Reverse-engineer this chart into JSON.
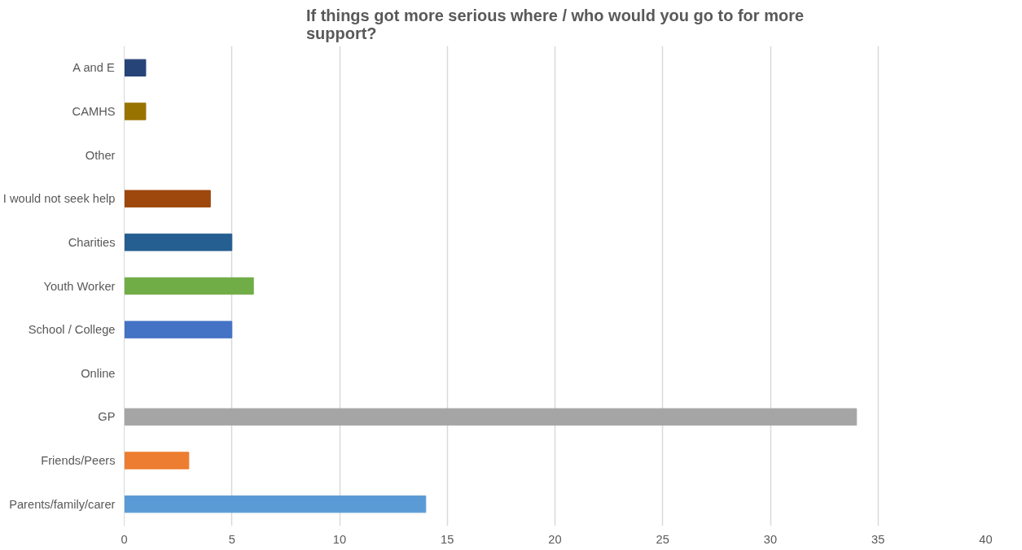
{
  "chart_data": {
    "type": "bar",
    "orientation": "horizontal",
    "title": "If things got more serious where / who would you go to for more support?",
    "categories": [
      "A and E",
      "CAMHS",
      "Other",
      "I would not seek help",
      "Charities",
      "Youth Worker",
      "School / College",
      "Online",
      "GP",
      "Friends/Peers",
      "Parents/family/carer"
    ],
    "values": [
      1,
      1,
      0,
      4,
      5,
      6,
      5,
      0,
      34,
      3,
      14
    ],
    "colors": [
      "#264478",
      "#997300",
      "#636363",
      "#9e480e",
      "#255e91",
      "#70ad47",
      "#4472c4",
      "#ffc000",
      "#a5a5a5",
      "#ed7d31",
      "#5b9bd5"
    ],
    "xlim": [
      0,
      40
    ],
    "xticks": [
      0,
      5,
      10,
      15,
      20,
      25,
      30,
      35,
      40
    ],
    "grid": "x"
  }
}
